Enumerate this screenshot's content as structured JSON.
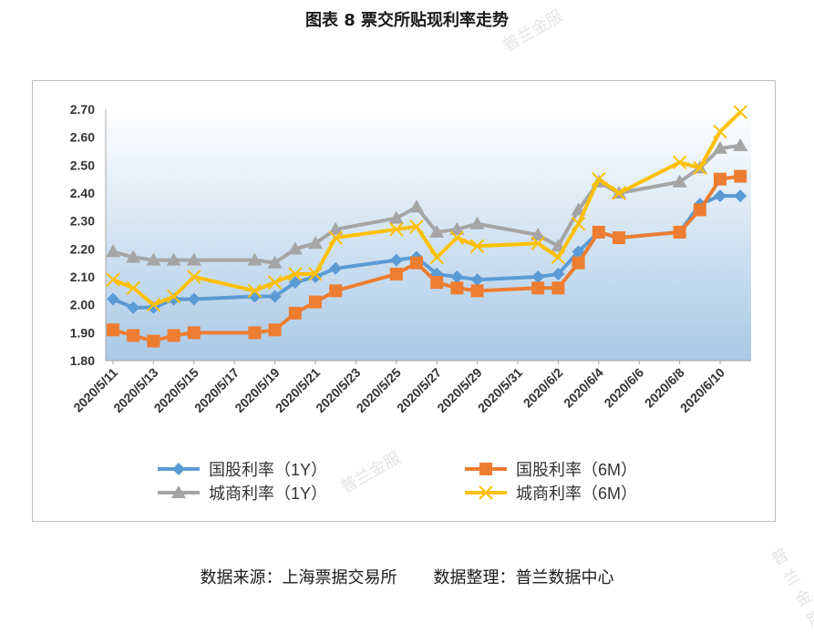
{
  "title": "图表 8  票交所贴现利率走势",
  "watermark": "普兰金服",
  "source": "数据来源：上海票据交易所",
  "arranged": "数据整理：普兰数据中心",
  "chart_data": {
    "type": "line",
    "x": [
      "2020/5/11",
      "2020/5/12",
      "2020/5/13",
      "2020/5/14",
      "2020/5/15",
      "2020/5/18",
      "2020/5/19",
      "2020/5/20",
      "2020/5/21",
      "2020/5/22",
      "2020/5/25",
      "2020/5/26",
      "2020/5/27",
      "2020/5/28",
      "2020/5/29",
      "2020/6/1",
      "2020/6/2",
      "2020/6/3",
      "2020/6/4",
      "2020/6/5",
      "2020/6/8",
      "2020/6/9",
      "2020/6/10",
      "2020/6/11"
    ],
    "x_day_offset": [
      0,
      1,
      2,
      3,
      4,
      7,
      8,
      9,
      10,
      11,
      14,
      15,
      16,
      17,
      18,
      21,
      22,
      23,
      24,
      25,
      28,
      29,
      30,
      31
    ],
    "tick_labels": [
      "2020/5/11",
      "2020/5/13",
      "2020/5/15",
      "2020/5/17",
      "2020/5/19",
      "2020/5/21",
      "2020/5/23",
      "2020/5/25",
      "2020/5/27",
      "2020/5/29",
      "2020/5/31",
      "2020/6/2",
      "2020/6/4",
      "2020/6/6",
      "2020/6/8",
      "2020/6/10"
    ],
    "tick_day_offset": [
      0,
      2,
      4,
      6,
      8,
      10,
      12,
      14,
      16,
      18,
      20,
      22,
      24,
      26,
      28,
      30
    ],
    "ylim": [
      1.8,
      2.7
    ],
    "yticks": [
      "1.80",
      "1.90",
      "2.00",
      "2.10",
      "2.20",
      "2.30",
      "2.40",
      "2.50",
      "2.60",
      "2.70"
    ],
    "legend_position": "bottom",
    "series": [
      {
        "name": "国股利率（1Y）",
        "color": "#5b9bd5",
        "marker": "diamond",
        "values": [
          2.02,
          1.99,
          1.99,
          2.02,
          2.02,
          2.03,
          2.03,
          2.08,
          2.1,
          2.13,
          2.16,
          2.17,
          2.11,
          2.1,
          2.09,
          2.1,
          2.11,
          2.19,
          2.26,
          2.24,
          2.26,
          2.36,
          2.39,
          2.39
        ]
      },
      {
        "name": "国股利率（6M）",
        "color": "#ed7d31",
        "marker": "square",
        "values": [
          1.91,
          1.89,
          1.87,
          1.89,
          1.9,
          1.9,
          1.91,
          1.97,
          2.01,
          2.05,
          2.11,
          2.15,
          2.08,
          2.06,
          2.05,
          2.06,
          2.06,
          2.15,
          2.26,
          2.24,
          2.26,
          2.34,
          2.45,
          2.46
        ]
      },
      {
        "name": "城商利率（1Y）",
        "color": "#a5a5a5",
        "marker": "triangle",
        "values": [
          2.19,
          2.17,
          2.16,
          2.16,
          2.16,
          2.16,
          2.15,
          2.2,
          2.22,
          2.27,
          2.31,
          2.35,
          2.26,
          2.27,
          2.29,
          2.25,
          2.21,
          2.34,
          2.44,
          2.4,
          2.44,
          2.49,
          2.56,
          2.57
        ]
      },
      {
        "name": "城商利率（6M）",
        "color": "#ffc000",
        "marker": "x",
        "values": [
          2.09,
          2.06,
          2.0,
          2.03,
          2.1,
          2.05,
          2.08,
          2.11,
          2.11,
          2.24,
          2.27,
          2.28,
          2.17,
          2.24,
          2.21,
          2.22,
          2.17,
          2.29,
          2.45,
          2.4,
          2.51,
          2.49,
          2.62,
          2.69
        ]
      }
    ]
  }
}
